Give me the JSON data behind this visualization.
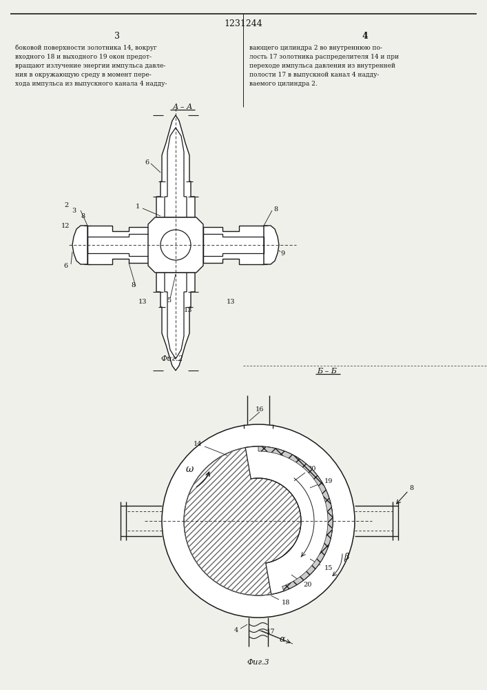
{
  "title_number": "1231244",
  "page_numbers": [
    "3",
    "4"
  ],
  "text_col1": "боковой поверхности золотника 14, вокруг\nвходного 18 и выходного 19 окон предот-\nвращают излучение энергии импульса давле-\nния в окружающую среду в момент пере-\nхода импульса из выпускного канала 4 надду-",
  "text_col2": "вающего цилиндра 2 во внутреннюю по-\nлость 17 золотника распределителя 14 и при\nпереходе импульса давления из внутренней\nполости 17 в выпускной канал 4 надду-\nваемого цилиндра 2.",
  "fig2_label": "А – А",
  "fig2_caption": "Фиг.2",
  "fig3_label": "Б – Б",
  "fig3_caption": "Фиг.3",
  "line_color": "#1a1a1a",
  "bg_color": "#f0f0eb",
  "text_color": "#111111"
}
